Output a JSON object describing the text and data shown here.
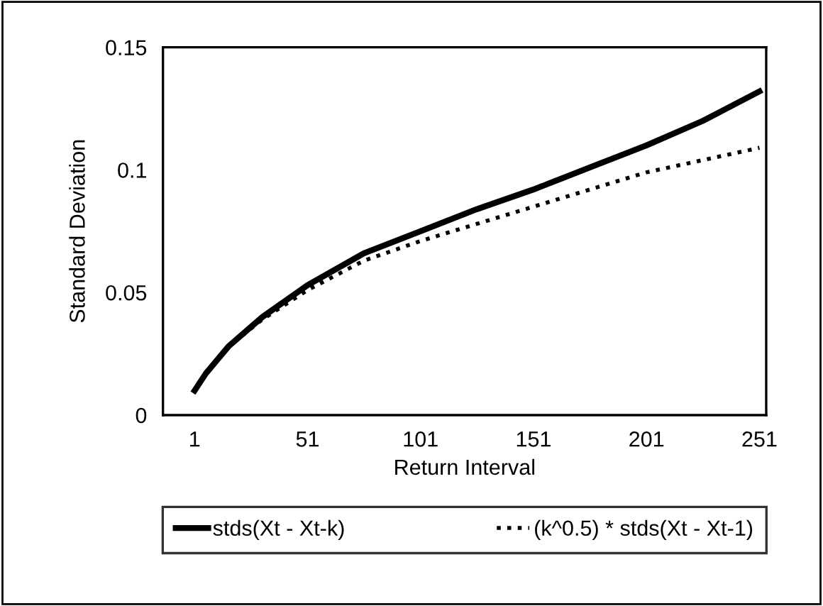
{
  "chart_data": {
    "type": "line",
    "xlabel": "Return Interval",
    "ylabel": "Standard Deviation",
    "x": [
      1,
      6,
      16,
      31,
      51,
      76,
      101,
      126,
      151,
      176,
      201,
      226,
      251
    ],
    "series": [
      {
        "name": "stds(Xt - Xt-k)",
        "color": "#000000",
        "line_style": "solid",
        "values": [
          0.01,
          0.017,
          0.028,
          0.04,
          0.053,
          0.066,
          0.075,
          0.084,
          0.092,
          0.101,
          0.11,
          0.12,
          0.132
        ]
      },
      {
        "name": "(k^0.5) * stds(Xt - Xt-1)",
        "color": "#000000",
        "line_style": "dotted",
        "values": [
          0.01,
          0.017,
          0.028,
          0.039,
          0.051,
          0.063,
          0.071,
          0.078,
          0.085,
          0.092,
          0.099,
          0.104,
          0.109
        ]
      }
    ],
    "xlim": [
      -13,
      254
    ],
    "ylim": [
      0,
      0.15
    ],
    "xticks": [
      1,
      51,
      101,
      151,
      201,
      251
    ],
    "yticks": [
      0,
      0.05,
      0.1,
      0.15
    ],
    "grid": false,
    "legend": "bottom",
    "marker": "none"
  }
}
